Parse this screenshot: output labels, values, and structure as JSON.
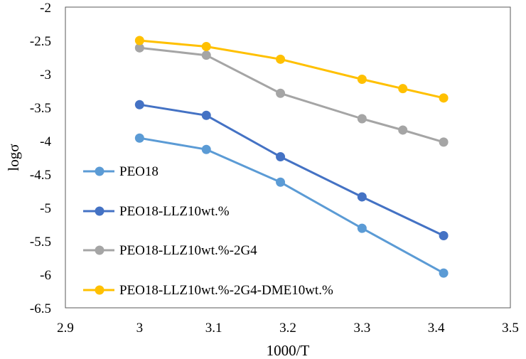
{
  "chart_data": {
    "type": "line",
    "title": "",
    "xlabel": "1000/T",
    "ylabel": "logσ",
    "xlim": [
      2.9,
      3.5
    ],
    "ylim": [
      -6.5,
      -2
    ],
    "xticks": [
      "2.9",
      "3",
      "3.1",
      "3.2",
      "3.3",
      "3.4",
      "3.5"
    ],
    "yticks": [
      "-2",
      "-2.5",
      "-3",
      "-3.5",
      "-4",
      "-4.5",
      "-5",
      "-5.5",
      "-6",
      "-6.5"
    ],
    "grid": false,
    "legend_position": "bottom-left",
    "series": [
      {
        "name": "PEO18",
        "color": "#5b9bd5",
        "x": [
          3.0,
          3.09,
          3.19,
          3.3,
          3.41
        ],
        "y": [
          -3.96,
          -4.13,
          -4.62,
          -5.31,
          -5.98
        ]
      },
      {
        "name": "PEO18-LLZ10wt.%",
        "color": "#4472c4",
        "x": [
          3.0,
          3.09,
          3.19,
          3.3,
          3.41
        ],
        "y": [
          -3.46,
          -3.62,
          -4.24,
          -4.84,
          -5.42
        ]
      },
      {
        "name": "PEO18-LLZ10wt.%-2G4",
        "color": "#a5a5a5",
        "x": [
          3.0,
          3.09,
          3.19,
          3.3,
          3.355,
          3.41
        ],
        "y": [
          -2.61,
          -2.72,
          -3.29,
          -3.67,
          -3.84,
          -4.02
        ]
      },
      {
        "name": "PEO18-LLZ10wt.%-2G4-DME10wt.%",
        "color": "#ffc000",
        "x": [
          3.0,
          3.09,
          3.19,
          3.3,
          3.355,
          3.41
        ],
        "y": [
          -2.5,
          -2.59,
          -2.78,
          -3.08,
          -3.22,
          -3.36
        ]
      }
    ]
  }
}
